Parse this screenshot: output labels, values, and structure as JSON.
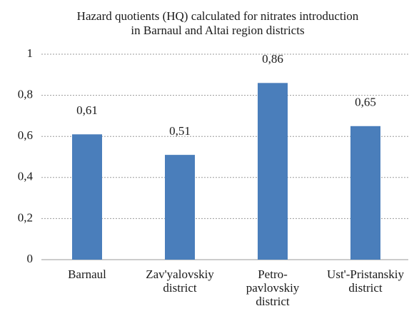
{
  "chart_data": {
    "type": "bar",
    "title": [
      "Hazard quotients (HQ) calculated for nitrates introduction",
      "in Barnaul and Altai region districts"
    ],
    "categories": [
      [
        "Barnaul"
      ],
      [
        "Zav'yalovskiy",
        "district"
      ],
      [
        "Petro-",
        "pavlovskiy",
        "district"
      ],
      [
        "Ust'-Pristanskiy",
        "district"
      ]
    ],
    "values": [
      0.61,
      0.51,
      0.86,
      0.65
    ],
    "value_labels": [
      "0,61",
      "0,51",
      "0,86",
      "0,65"
    ],
    "color": "#4a7ebb",
    "ylim": [
      0,
      1
    ],
    "yticks": [
      0,
      {
        "value": 0.2,
        "label": "0,2"
      },
      {
        "value": 0.4,
        "label": "0,4"
      },
      {
        "value": 0.6,
        "label": "0,6"
      },
      {
        "value": 0.8,
        "label": "0,8"
      },
      1
    ],
    "grid": true
  }
}
